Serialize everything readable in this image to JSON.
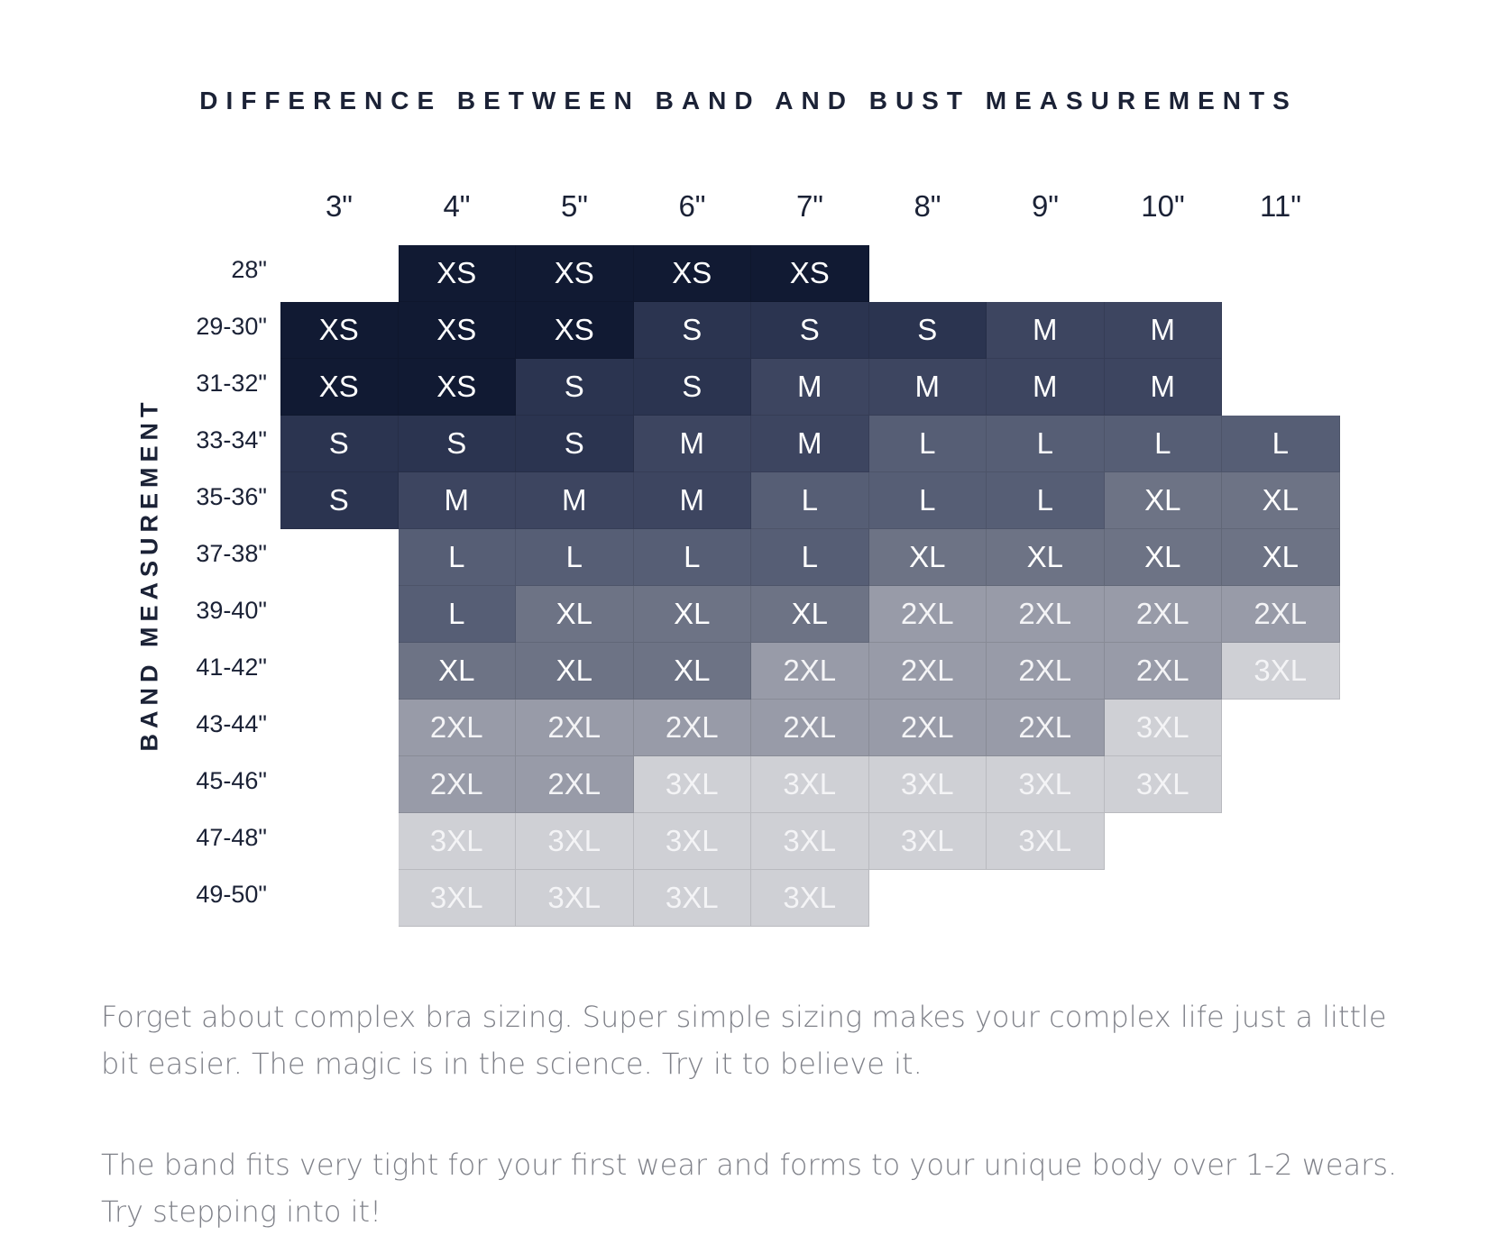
{
  "chart_data": {
    "type": "table",
    "title": "DIFFERENCE BETWEEN BAND AND BUST MEASUREMENTS",
    "ylabel": "BAND MEASUREMENT",
    "columns": [
      "3\"",
      "4\"",
      "5\"",
      "6\"",
      "7\"",
      "8\"",
      "9\"",
      "10\"",
      "11\""
    ],
    "rows": [
      {
        "label": "28\"",
        "cells": [
          null,
          "XS",
          "XS",
          "XS",
          "XS",
          null,
          null,
          null,
          null
        ]
      },
      {
        "label": "29-30\"",
        "cells": [
          "XS",
          "XS",
          "XS",
          "S",
          "S",
          "S",
          "M",
          "M",
          null
        ]
      },
      {
        "label": "31-32\"",
        "cells": [
          "XS",
          "XS",
          "S",
          "S",
          "M",
          "M",
          "M",
          "M",
          null
        ]
      },
      {
        "label": "33-34\"",
        "cells": [
          "S",
          "S",
          "S",
          "M",
          "M",
          "L",
          "L",
          "L",
          "L"
        ]
      },
      {
        "label": "35-36\"",
        "cells": [
          "S",
          "M",
          "M",
          "M",
          "L",
          "L",
          "L",
          "XL",
          "XL"
        ]
      },
      {
        "label": "37-38\"",
        "cells": [
          null,
          "L",
          "L",
          "L",
          "L",
          "XL",
          "XL",
          "XL",
          "XL"
        ]
      },
      {
        "label": "39-40\"",
        "cells": [
          null,
          "L",
          "XL",
          "XL",
          "XL",
          "2XL",
          "2XL",
          "2XL",
          "2XL"
        ]
      },
      {
        "label": "41-42\"",
        "cells": [
          null,
          "XL",
          "XL",
          "XL",
          "2XL",
          "2XL",
          "2XL",
          "2XL",
          "3XL"
        ]
      },
      {
        "label": "43-44\"",
        "cells": [
          null,
          "2XL",
          "2XL",
          "2XL",
          "2XL",
          "2XL",
          "2XL",
          "3XL",
          null
        ]
      },
      {
        "label": "45-46\"",
        "cells": [
          null,
          "2XL",
          "2XL",
          "3XL",
          "3XL",
          "3XL",
          "3XL",
          "3XL",
          null
        ]
      },
      {
        "label": "47-48\"",
        "cells": [
          null,
          "3XL",
          "3XL",
          "3XL",
          "3XL",
          "3XL",
          "3XL",
          null,
          null
        ]
      },
      {
        "label": "49-50\"",
        "cells": [
          null,
          "3XL",
          "3XL",
          "3XL",
          "3XL",
          null,
          null,
          null,
          null
        ]
      }
    ],
    "size_colors": {
      "XS": "#111a33",
      "S": "#2b3450",
      "M": "#3d4560",
      "L": "#565e75",
      "XL": "#6d7385",
      "2XL": "#989ba8",
      "3XL": "#cfd0d5"
    }
  },
  "description": {
    "paragraph_1": "Forget about complex bra sizing. Super simple sizing makes your complex life just a little bit easier. The magic is in the science. Try it to believe it.",
    "paragraph_2": "The band fits very tight for your first wear and forms to your unique body over 1-2 wears. Try stepping into it!"
  }
}
